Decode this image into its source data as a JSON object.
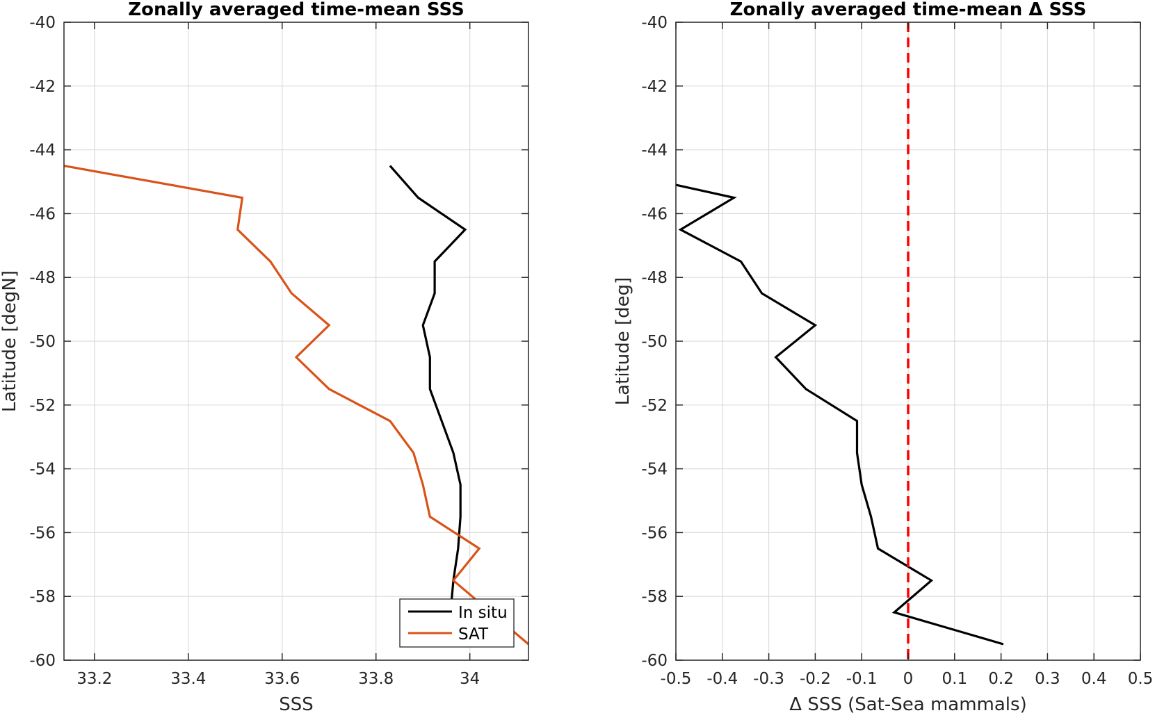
{
  "chart_data": [
    {
      "type": "line",
      "title": "Zonally averaged time-mean SSS",
      "xlabel": "SSS",
      "ylabel": "Latitude [degN]",
      "xlim": [
        33.135,
        34.125
      ],
      "ylim": [
        -60,
        -40
      ],
      "xticks": [
        33.2,
        33.4,
        33.6,
        33.8,
        34
      ],
      "xtick_labels": [
        "33.2",
        "33.4",
        "33.6",
        "33.8",
        "34"
      ],
      "yticks": [
        -40,
        -42,
        -44,
        -46,
        -48,
        -50,
        -52,
        -54,
        -56,
        -58,
        -60
      ],
      "ytick_labels": [
        "-40",
        "-42",
        "-44",
        "-46",
        "-48",
        "-50",
        "-52",
        "-54",
        "-56",
        "-58",
        "-60"
      ],
      "grid": true,
      "legend_position": "bottom-right",
      "series": [
        {
          "name": "In situ",
          "color": "#000000",
          "x": [
            33.83,
            33.89,
            33.99,
            33.925,
            33.925,
            33.9,
            33.915,
            33.915,
            33.94,
            33.965,
            33.98,
            33.98,
            33.975,
            33.965,
            33.96
          ],
          "y": [
            -44.5,
            -45.5,
            -46.5,
            -47.5,
            -48.5,
            -49.5,
            -50.5,
            -51.5,
            -52.5,
            -53.5,
            -54.5,
            -55.5,
            -56.5,
            -57.5,
            -58.3
          ]
        },
        {
          "name": "SAT",
          "color": "#D95319",
          "x": [
            33.135,
            33.515,
            33.505,
            33.575,
            33.62,
            33.7,
            33.63,
            33.7,
            33.83,
            33.88,
            33.9,
            33.915,
            34.02,
            33.965,
            34.125
          ],
          "y": [
            -44.5,
            -45.5,
            -46.5,
            -47.5,
            -48.5,
            -49.5,
            -50.5,
            -51.5,
            -52.5,
            -53.5,
            -54.5,
            -55.5,
            -56.5,
            -57.5,
            -59.5
          ]
        }
      ]
    },
    {
      "type": "line",
      "title": "Zonally averaged time-mean Δ SSS",
      "xlabel": "Δ SSS (Sat-Sea mammals)",
      "ylabel": "Latitude [deg]",
      "xlim": [
        -0.5,
        0.5
      ],
      "ylim": [
        -60,
        -40
      ],
      "xticks": [
        -0.5,
        -0.4,
        -0.3,
        -0.2,
        -0.1,
        0,
        0.1,
        0.2,
        0.3,
        0.4,
        0.5
      ],
      "xtick_labels": [
        "-0.5",
        "-0.4",
        "-0.3",
        "-0.2",
        "-0.1",
        "0",
        "0.1",
        "0.2",
        "0.3",
        "0.4",
        "0.5"
      ],
      "yticks": [
        -40,
        -42,
        -44,
        -46,
        -48,
        -50,
        -52,
        -54,
        -56,
        -58,
        -60
      ],
      "ytick_labels": [
        "-40",
        "-42",
        "-44",
        "-46",
        "-48",
        "-50",
        "-52",
        "-54",
        "-56",
        "-58",
        "-60"
      ],
      "grid": true,
      "reference_line": {
        "x": 0,
        "color": "#FF0000",
        "style": "dashed"
      },
      "series": [
        {
          "color": "#000000",
          "x": [
            -0.5,
            -0.375,
            -0.49,
            -0.36,
            -0.315,
            -0.2,
            -0.285,
            -0.22,
            -0.11,
            -0.11,
            -0.1,
            -0.08,
            -0.065,
            0.05,
            -0.03,
            0.205
          ],
          "y": [
            -45.1,
            -45.5,
            -46.5,
            -47.5,
            -48.5,
            -49.5,
            -50.5,
            -51.5,
            -52.5,
            -53.5,
            -54.5,
            -55.5,
            -56.5,
            -57.5,
            -58.5,
            -59.5
          ]
        }
      ]
    }
  ],
  "legend": {
    "items": [
      {
        "label": "In situ",
        "color": "#000000"
      },
      {
        "label": "SAT",
        "color": "#D95319"
      }
    ]
  }
}
